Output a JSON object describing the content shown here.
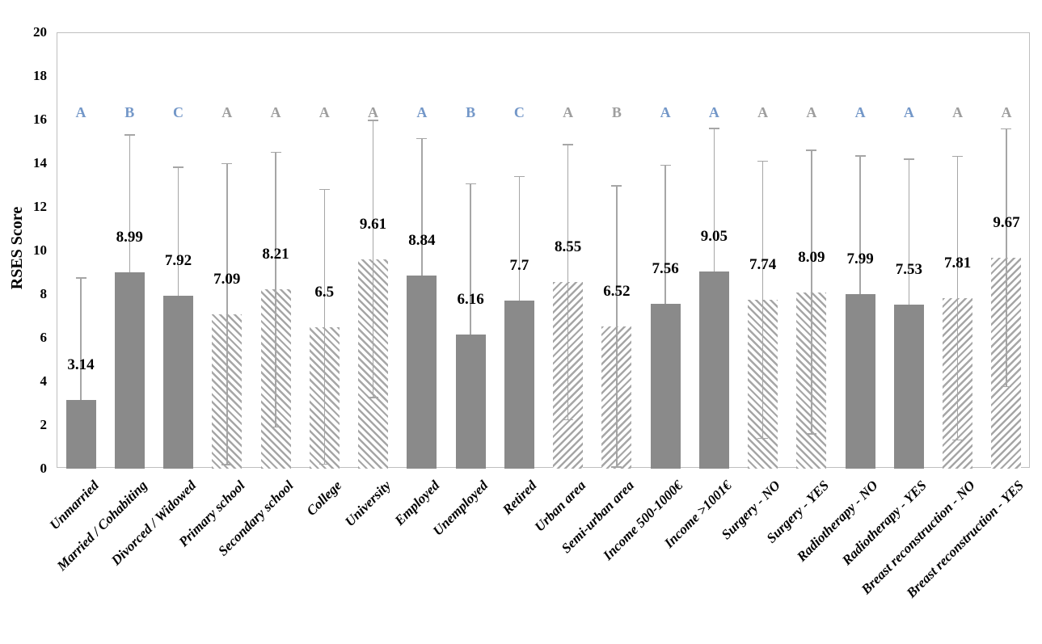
{
  "chart_data": {
    "type": "bar",
    "title": "",
    "ylabel": "RSES Score",
    "xlabel": "",
    "ylim": [
      0,
      20
    ],
    "ytick_step": 2,
    "ytick_labels": [
      "0",
      "2",
      "4",
      "6",
      "8",
      "10",
      "12",
      "14",
      "16",
      "18",
      "20"
    ],
    "grid": "off",
    "legend": "none",
    "categories": [
      "Unmarried",
      "Married / Cohabiting",
      "Divorced / Widowed",
      "Primary school",
      "Secondary school",
      "College",
      "University",
      "Employed",
      "Unemployed",
      "Retired",
      "Urban area",
      "Semi-urban area",
      "Income 500-1000€",
      "Income >1001€",
      "Surgery - NO",
      "Surgery - YES",
      "Radiotherapy - NO",
      "Radiotherapy - YES",
      "Breast reconstruction - NO",
      "Breast reconstruction - YES"
    ],
    "values": [
      3.14,
      8.99,
      7.92,
      7.09,
      8.21,
      6.5,
      9.61,
      8.84,
      6.16,
      7.7,
      8.55,
      6.52,
      7.56,
      9.05,
      7.74,
      8.09,
      7.99,
      7.53,
      7.81,
      9.67
    ],
    "value_labels": [
      "3.14",
      "8.99",
      "7.92",
      "7.09",
      "8.21",
      "6.5",
      "9.61",
      "8.84",
      "6.16",
      "7.7",
      "8.55",
      "6.52",
      "7.56",
      "9.05",
      "7.74",
      "8.09",
      "7.99",
      "7.53",
      "7.81",
      "9.67"
    ],
    "error_sd": [
      5.6,
      6.3,
      5.9,
      6.9,
      6.3,
      6.3,
      6.35,
      6.3,
      6.9,
      5.7,
      6.3,
      6.45,
      6.35,
      6.55,
      6.35,
      6.5,
      6.35,
      6.65,
      6.5,
      5.9
    ],
    "significance_letters": [
      "A",
      "B",
      "C",
      "A",
      "A",
      "A",
      "A",
      "A",
      "B",
      "C",
      "A",
      "B",
      "A",
      "A",
      "A",
      "A",
      "A",
      "A",
      "A",
      "A"
    ],
    "significance_letter_colors": [
      "blue",
      "blue",
      "blue",
      "gray",
      "gray",
      "gray",
      "gray",
      "blue",
      "blue",
      "blue",
      "gray",
      "gray",
      "blue",
      "blue",
      "gray",
      "gray",
      "blue",
      "blue",
      "gray",
      "gray"
    ],
    "bar_styles": [
      "solid",
      "solid",
      "solid",
      "hatch-back",
      "hatch-back",
      "hatch-back",
      "hatch-back",
      "solid",
      "solid",
      "solid",
      "hatch-fwd",
      "hatch-fwd",
      "solid",
      "solid",
      "hatch-back",
      "hatch-back",
      "solid",
      "solid",
      "hatch-fwd",
      "hatch-fwd"
    ],
    "colors": {
      "solid_bar_fill": "#8a8a8a",
      "hatch_stroke": "#a6a6a6",
      "error_bar": "#a6a6a6",
      "plot_border": "#bfbfbf",
      "letter_blue": "#7397c8",
      "letter_gray": "#9e9e9e",
      "text": "#000000",
      "background": "#ffffff"
    }
  }
}
